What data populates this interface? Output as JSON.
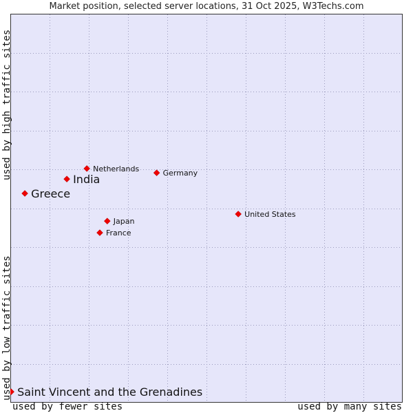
{
  "chart_data": {
    "type": "scatter",
    "title": "Market position, selected server locations, 31 Oct 2025, W3Techs.com",
    "xlabel_left": "used by fewer sites",
    "xlabel_right": "used by many sites",
    "ylabel_bottom": "used by low traffic sites",
    "ylabel_top": "used by high traffic sites",
    "xlim": [
      0,
      100
    ],
    "ylim": [
      0,
      100
    ],
    "grid": true,
    "colors": {
      "background": "#e6e6fa",
      "point": "#ee0000",
      "grid": "#9999bb"
    },
    "points": [
      {
        "label": "Netherlands",
        "x": 19.5,
        "y": 60.2,
        "emphasis": false
      },
      {
        "label": "India",
        "x": 14.4,
        "y": 57.5,
        "emphasis": true
      },
      {
        "label": "Greece",
        "x": 3.7,
        "y": 53.8,
        "emphasis": true
      },
      {
        "label": "Germany",
        "x": 37.3,
        "y": 59.1,
        "emphasis": false
      },
      {
        "label": "United States",
        "x": 58.1,
        "y": 48.5,
        "emphasis": false
      },
      {
        "label": "Japan",
        "x": 24.7,
        "y": 46.7,
        "emphasis": false
      },
      {
        "label": "France",
        "x": 22.8,
        "y": 43.7,
        "emphasis": false
      },
      {
        "label": "Saint Vincent and the Grenadines",
        "x": 0.2,
        "y": 2.8,
        "emphasis": true
      }
    ]
  }
}
